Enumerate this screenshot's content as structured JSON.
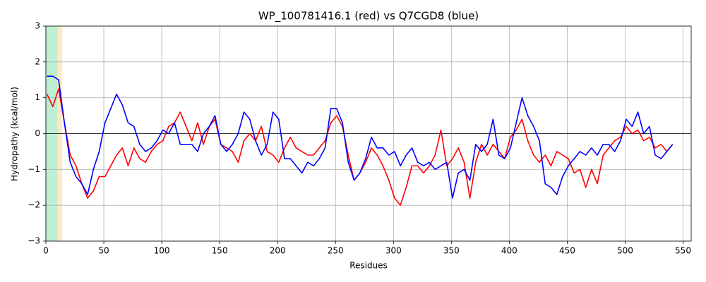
{
  "chart_data": {
    "type": "line",
    "title": "WP_100781416.1 (red) vs Q7CGD8 (blue)",
    "x_label": "Residues",
    "y_label": "Hydropathy (kcal/mol)",
    "x": [
      1,
      6,
      11,
      16,
      21,
      26,
      31,
      36,
      41,
      46,
      51,
      56,
      61,
      66,
      71,
      76,
      81,
      86,
      91,
      96,
      101,
      106,
      111,
      116,
      121,
      126,
      131,
      136,
      141,
      146,
      151,
      156,
      161,
      166,
      171,
      176,
      181,
      186,
      191,
      196,
      201,
      206,
      211,
      216,
      221,
      226,
      231,
      236,
      241,
      246,
      251,
      256,
      261,
      266,
      271,
      276,
      281,
      286,
      291,
      296,
      301,
      306,
      311,
      316,
      321,
      326,
      331,
      336,
      341,
      346,
      351,
      356,
      361,
      366,
      371,
      376,
      381,
      386,
      391,
      396,
      401,
      406,
      411,
      416,
      421,
      426,
      431,
      436,
      441,
      446,
      451,
      456,
      461,
      466,
      471,
      476,
      481,
      486,
      491,
      496,
      501,
      506,
      511,
      516,
      521,
      526,
      531,
      536,
      541
    ],
    "series": [
      {
        "color": "#ff0000",
        "values": [
          1.1,
          0.75,
          1.25,
          0.3,
          -0.6,
          -0.9,
          -1.4,
          -1.8,
          -1.6,
          -1.2,
          -1.2,
          -0.9,
          -0.6,
          -0.4,
          -0.9,
          -0.4,
          -0.7,
          -0.8,
          -0.5,
          -0.3,
          -0.2,
          0.2,
          0.3,
          0.6,
          0.2,
          -0.2,
          0.3,
          -0.3,
          0.2,
          0.4,
          -0.3,
          -0.4,
          -0.5,
          -0.8,
          -0.2,
          0.0,
          -0.2,
          0.2,
          -0.5,
          -0.6,
          -0.8,
          -0.4,
          -0.1,
          -0.4,
          -0.5,
          -0.6,
          -0.6,
          -0.4,
          -0.2,
          0.3,
          0.5,
          0.2,
          -0.6,
          -1.3,
          -1.1,
          -0.8,
          -0.4,
          -0.6,
          -0.9,
          -1.3,
          -1.8,
          -2.0,
          -1.5,
          -0.9,
          -0.9,
          -1.1,
          -0.9,
          -0.6,
          0.1,
          -0.9,
          -0.7,
          -0.4,
          -0.8,
          -1.8,
          -0.8,
          -0.3,
          -0.6,
          -0.3,
          -0.5,
          -0.7,
          -0.1,
          0.1,
          0.4,
          -0.2,
          -0.6,
          -0.8,
          -0.6,
          -0.9,
          -0.5,
          -0.6,
          -0.7,
          -1.1,
          -1.0,
          -1.5,
          -1.0,
          -1.4,
          -0.6,
          -0.4,
          -0.2,
          -0.1,
          0.2,
          0.0,
          0.1,
          -0.2,
          -0.1,
          -0.4,
          -0.3,
          -0.5,
          -0.3
        ]
      },
      {
        "color": "#0000ff",
        "values": [
          1.6,
          1.6,
          1.5,
          0.3,
          -0.8,
          -1.2,
          -1.4,
          -1.7,
          -1.0,
          -0.5,
          0.3,
          0.7,
          1.1,
          0.8,
          0.3,
          0.2,
          -0.3,
          -0.5,
          -0.4,
          -0.2,
          0.1,
          0.0,
          0.3,
          -0.3,
          -0.3,
          -0.3,
          -0.5,
          0.0,
          0.2,
          0.5,
          -0.3,
          -0.5,
          -0.3,
          0.0,
          0.6,
          0.4,
          -0.2,
          -0.6,
          -0.3,
          0.6,
          0.4,
          -0.7,
          -0.7,
          -0.9,
          -1.1,
          -0.8,
          -0.9,
          -0.7,
          -0.4,
          0.7,
          0.7,
          0.3,
          -0.8,
          -1.3,
          -1.1,
          -0.7,
          -0.1,
          -0.4,
          -0.4,
          -0.6,
          -0.5,
          -0.9,
          -0.6,
          -0.4,
          -0.8,
          -0.9,
          -0.8,
          -1.0,
          -0.9,
          -0.8,
          -1.8,
          -1.1,
          -1.0,
          -1.3,
          -0.3,
          -0.5,
          -0.3,
          0.4,
          -0.6,
          -0.7,
          -0.4,
          0.3,
          1.0,
          0.5,
          0.2,
          -0.2,
          -1.4,
          -1.5,
          -1.7,
          -1.2,
          -0.9,
          -0.7,
          -0.5,
          -0.6,
          -0.4,
          -0.6,
          -0.3,
          -0.3,
          -0.5,
          -0.2,
          0.4,
          0.2,
          0.6,
          0.0,
          0.2,
          -0.6,
          -0.7,
          -0.5,
          -0.3
        ]
      }
    ],
    "regions": [
      {
        "start": 0,
        "end": 10,
        "color": "#bfefd3"
      },
      {
        "start": 10,
        "end": 14,
        "color": "#fde9c4"
      }
    ],
    "hline": 0,
    "xlim": [
      0,
      557
    ],
    "ylim": [
      -3,
      3
    ],
    "xticks": [
      0,
      50,
      100,
      150,
      200,
      250,
      300,
      350,
      400,
      450,
      500,
      550
    ],
    "yticks": [
      {
        "value": -3,
        "label": "−3"
      },
      {
        "value": -2,
        "label": "−2"
      },
      {
        "value": -1,
        "label": "−1"
      },
      0,
      1,
      2,
      3
    ],
    "grid": true
  }
}
